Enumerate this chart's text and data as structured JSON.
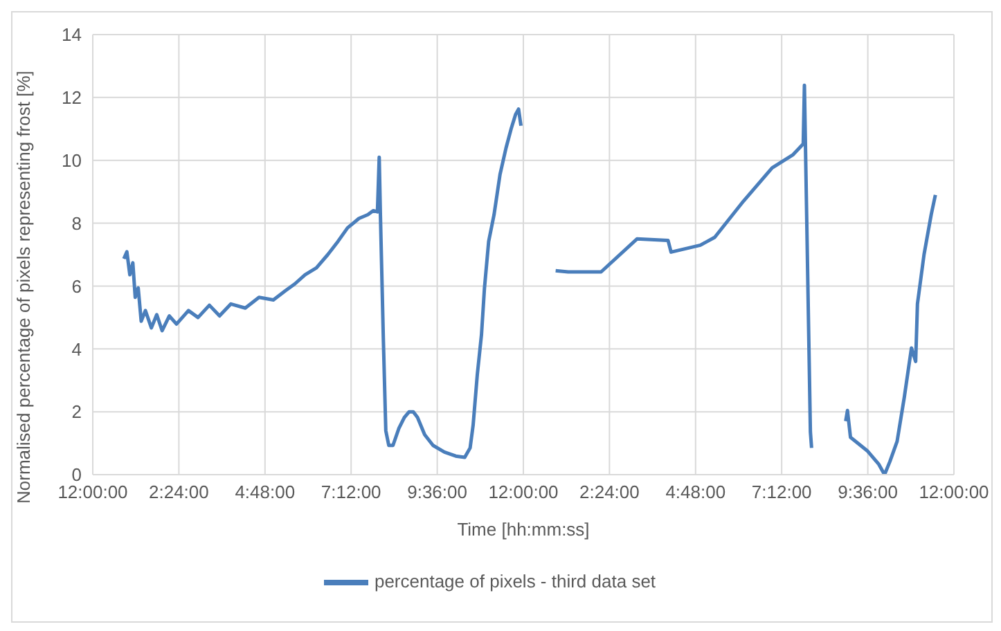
{
  "chart_data": {
    "type": "line",
    "xlabel": "Time [hh:mm:ss]",
    "ylabel": "Normalised percentage of pixels representing frost [%]",
    "xlim": [
      "2000-01-01T00:00",
      "2000-01-02T00:00"
    ],
    "xticks": [
      {
        "value": "2000-01-01T00:00",
        "label": "12:00:00"
      },
      {
        "value": "2000-01-01T02:24",
        "label": "2:24:00"
      },
      {
        "value": "2000-01-01T04:48",
        "label": "4:48:00"
      },
      {
        "value": "2000-01-01T07:12",
        "label": "7:12:00"
      },
      {
        "value": "2000-01-01T09:36",
        "label": "9:36:00"
      },
      {
        "value": "2000-01-01T12:00",
        "label": "12:00:00"
      },
      {
        "value": "2000-01-01T14:24",
        "label": "2:24:00"
      },
      {
        "value": "2000-01-01T16:48",
        "label": "4:48:00"
      },
      {
        "value": "2000-01-01T19:12",
        "label": "7:12:00"
      },
      {
        "value": "2000-01-01T21:36",
        "label": "9:36:00"
      },
      {
        "value": "2000-01-02T00:00",
        "label": "12:00:00"
      }
    ],
    "ylim": [
      0,
      14
    ],
    "yticks": [
      0,
      2,
      4,
      6,
      8,
      10,
      12,
      14
    ],
    "grid": true,
    "legend": "bottom",
    "marker": "none",
    "line_style": "solid",
    "x": [
      "2000-01-01T00:52",
      "2000-01-01T00:57",
      "2000-01-01T01:02",
      "2000-01-01T01:07",
      "2000-01-01T01:11",
      "2000-01-01T01:16",
      "2000-01-01T01:21",
      "2000-01-01T01:28",
      "2000-01-01T01:38",
      "2000-01-01T01:47",
      "2000-01-01T01:56",
      "2000-01-01T02:08",
      "2000-01-01T02:20",
      "2000-01-01T02:40",
      "2000-01-01T02:56",
      "2000-01-01T03:15",
      "2000-01-01T03:32",
      "2000-01-01T03:51",
      "2000-01-01T04:15",
      "2000-01-01T04:38",
      "2000-01-01T05:02",
      "2000-01-01T05:22",
      "2000-01-01T05:38",
      "2000-01-01T05:55",
      "2000-01-01T06:14",
      "2000-01-01T06:33",
      "2000-01-01T06:50",
      "2000-01-01T07:06",
      "2000-01-01T07:25",
      "2000-01-01T07:40",
      "2000-01-01T07:49",
      "2000-01-01T07:56",
      "2000-01-01T07:59",
      "2000-01-01T08:01",
      "2000-01-01T08:06",
      "2000-01-01T08:10",
      "2000-01-01T08:15",
      "2000-01-01T08:22",
      "2000-01-01T08:32",
      "2000-01-01T08:41",
      "2000-01-01T08:49",
      "2000-01-01T08:56",
      "2000-01-01T09:03",
      "2000-01-01T09:15",
      "2000-01-01T09:29",
      "2000-01-01T09:48",
      "2000-01-01T10:07",
      "2000-01-01T10:22",
      "2000-01-01T10:31",
      "2000-01-01T10:36",
      "2000-01-01T10:43",
      "2000-01-01T10:50",
      "2000-01-01T10:55",
      "2000-01-01T11:02",
      "2000-01-01T11:11",
      "2000-01-01T11:21",
      "2000-01-01T11:31",
      "2000-01-01T11:40",
      "2000-01-01T11:47",
      "2000-01-01T11:52",
      "2000-01-01T11:56",
      "2000-01-01T12:24",
      "2000-01-01T12:54",
      "2000-01-01T13:15",
      "2000-01-01T14:10",
      "2000-01-01T15:10",
      "2000-01-01T16:02",
      "2000-01-01T16:07",
      "2000-01-01T16:56",
      "2000-01-01T17:20",
      "2000-01-01T18:08",
      "2000-01-01T18:56",
      "2000-01-01T19:31",
      "2000-01-01T19:48",
      "2000-01-01T19:50",
      "2000-01-01T20:00",
      "2000-01-01T20:02",
      "2000-01-01T20:30",
      "2000-01-01T20:59",
      "2000-01-01T21:02",
      "2000-01-01T21:07",
      "2000-01-01T21:35",
      "2000-01-01T21:54",
      "2000-01-01T22:04",
      "2000-01-01T22:13",
      "2000-01-01T22:25",
      "2000-01-01T22:37",
      "2000-01-01T22:49",
      "2000-01-01T22:56",
      "2000-01-01T22:59",
      "2000-01-01T23:10",
      "2000-01-01T23:22",
      "2000-01-01T23:29"
    ],
    "series": [
      {
        "name": "percentage of pixels - third data set",
        "color": "#4a7ebb",
        "values": [
          6.87,
          7.09,
          6.36,
          6.74,
          5.64,
          5.94,
          4.88,
          5.22,
          4.67,
          5.09,
          4.58,
          5.05,
          4.79,
          5.22,
          5.0,
          5.39,
          5.05,
          5.43,
          5.3,
          5.64,
          5.56,
          5.85,
          6.07,
          6.36,
          6.58,
          7.0,
          7.42,
          7.85,
          8.15,
          8.27,
          8.4,
          8.36,
          10.1,
          8.27,
          4.24,
          1.4,
          0.93,
          0.93,
          1.48,
          1.82,
          2.0,
          2.0,
          1.82,
          1.27,
          0.93,
          0.72,
          0.59,
          0.55,
          0.85,
          1.57,
          3.18,
          4.45,
          5.94,
          7.42,
          8.27,
          9.55,
          10.39,
          11.03,
          11.46,
          11.63,
          11.1,
          null,
          6.49,
          6.45,
          6.45,
          7.5,
          7.45,
          7.08,
          7.3,
          7.55,
          8.7,
          9.76,
          10.18,
          10.52,
          12.39,
          1.36,
          0.85,
          null,
          1.7,
          2.04,
          1.19,
          0.76,
          0.34,
          0.0,
          0.42,
          1.06,
          2.46,
          4.03,
          3.6,
          5.43,
          7.0,
          8.27,
          8.9
        ]
      }
    ]
  }
}
